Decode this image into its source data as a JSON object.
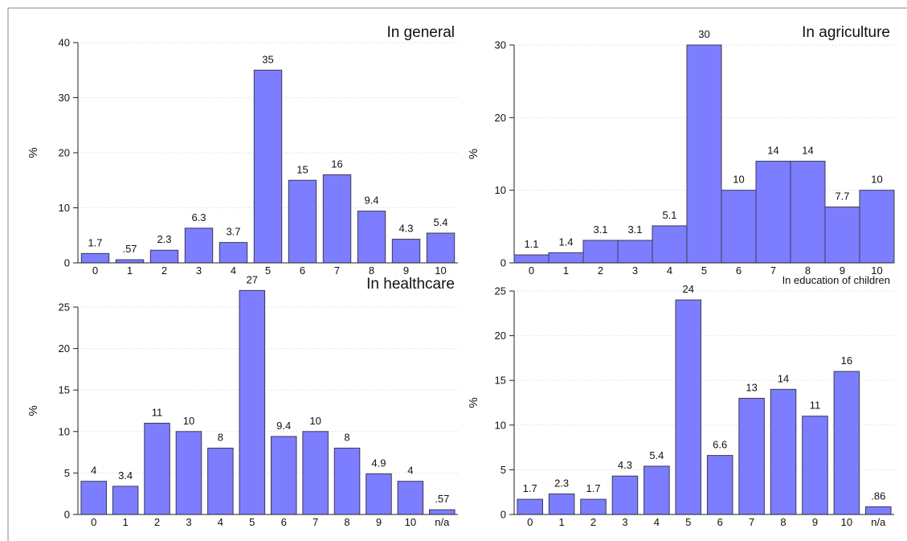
{
  "chart_data": [
    {
      "type": "bar",
      "title": "In general",
      "ylabel": "%",
      "ylim": [
        0,
        40
      ],
      "yticks": [
        0,
        10,
        20,
        30,
        40
      ],
      "bar_style": "separated",
      "bar_color": "#7d7dff",
      "categories": [
        "0",
        "1",
        "2",
        "3",
        "4",
        "5",
        "6",
        "7",
        "8",
        "9",
        "10"
      ],
      "values": [
        1.7,
        0.57,
        2.3,
        6.3,
        3.7,
        35,
        15,
        16,
        9.4,
        4.3,
        5.4
      ],
      "value_labels": [
        "1.7",
        ".57",
        "2.3",
        "6.3",
        "3.7",
        "35",
        "15",
        "16",
        "9.4",
        "4.3",
        "5.4"
      ]
    },
    {
      "type": "bar",
      "title": "In agriculture",
      "ylabel": "%",
      "ylim": [
        0,
        30
      ],
      "yticks": [
        0,
        10,
        20,
        30
      ],
      "bar_style": "adjacent",
      "bar_color": "#7d7dff",
      "categories": [
        "0",
        "1",
        "2",
        "3",
        "4",
        "5",
        "6",
        "7",
        "8",
        "9",
        "10"
      ],
      "values": [
        1.1,
        1.4,
        3.1,
        3.1,
        5.1,
        30,
        10,
        14,
        14,
        7.7,
        10
      ],
      "value_labels": [
        "1.1",
        "1.4",
        "3.1",
        "3.1",
        "5.1",
        "30",
        "10",
        "14",
        "14",
        "7.7",
        "10"
      ]
    },
    {
      "type": "bar",
      "title": "In healthcare",
      "ylabel": "%",
      "ylim": [
        0,
        25
      ],
      "yticks": [
        0,
        5,
        10,
        15,
        20,
        25
      ],
      "bar_style": "separated",
      "bar_color": "#7d7dff",
      "categories": [
        "0",
        "1",
        "2",
        "3",
        "4",
        "5",
        "6",
        "7",
        "8",
        "9",
        "10",
        "n/a"
      ],
      "values": [
        4,
        3.4,
        11,
        10,
        8,
        27,
        9.4,
        10,
        8,
        4.9,
        4,
        0.57
      ],
      "value_labels": [
        "4",
        "3.4",
        "11",
        "10",
        "8",
        "27",
        "9.4",
        "10",
        "8",
        "4.9",
        "4",
        ".57"
      ]
    },
    {
      "type": "bar",
      "title": "In education of children",
      "ylabel": "%",
      "ylim": [
        0,
        25
      ],
      "yticks": [
        0,
        5,
        10,
        15,
        20,
        25
      ],
      "bar_style": "separated",
      "bar_color": "#7d7dff",
      "categories": [
        "0",
        "1",
        "2",
        "3",
        "4",
        "5",
        "6",
        "7",
        "8",
        "9",
        "10",
        "n/a"
      ],
      "values": [
        1.7,
        2.3,
        1.7,
        4.3,
        5.4,
        24,
        6.6,
        13,
        14,
        11,
        16,
        0.86
      ],
      "value_labels": [
        "1.7",
        "2.3",
        "1.7",
        "4.3",
        "5.4",
        "24",
        "6.6",
        "13",
        "14",
        "11",
        "16",
        ".86"
      ]
    }
  ]
}
